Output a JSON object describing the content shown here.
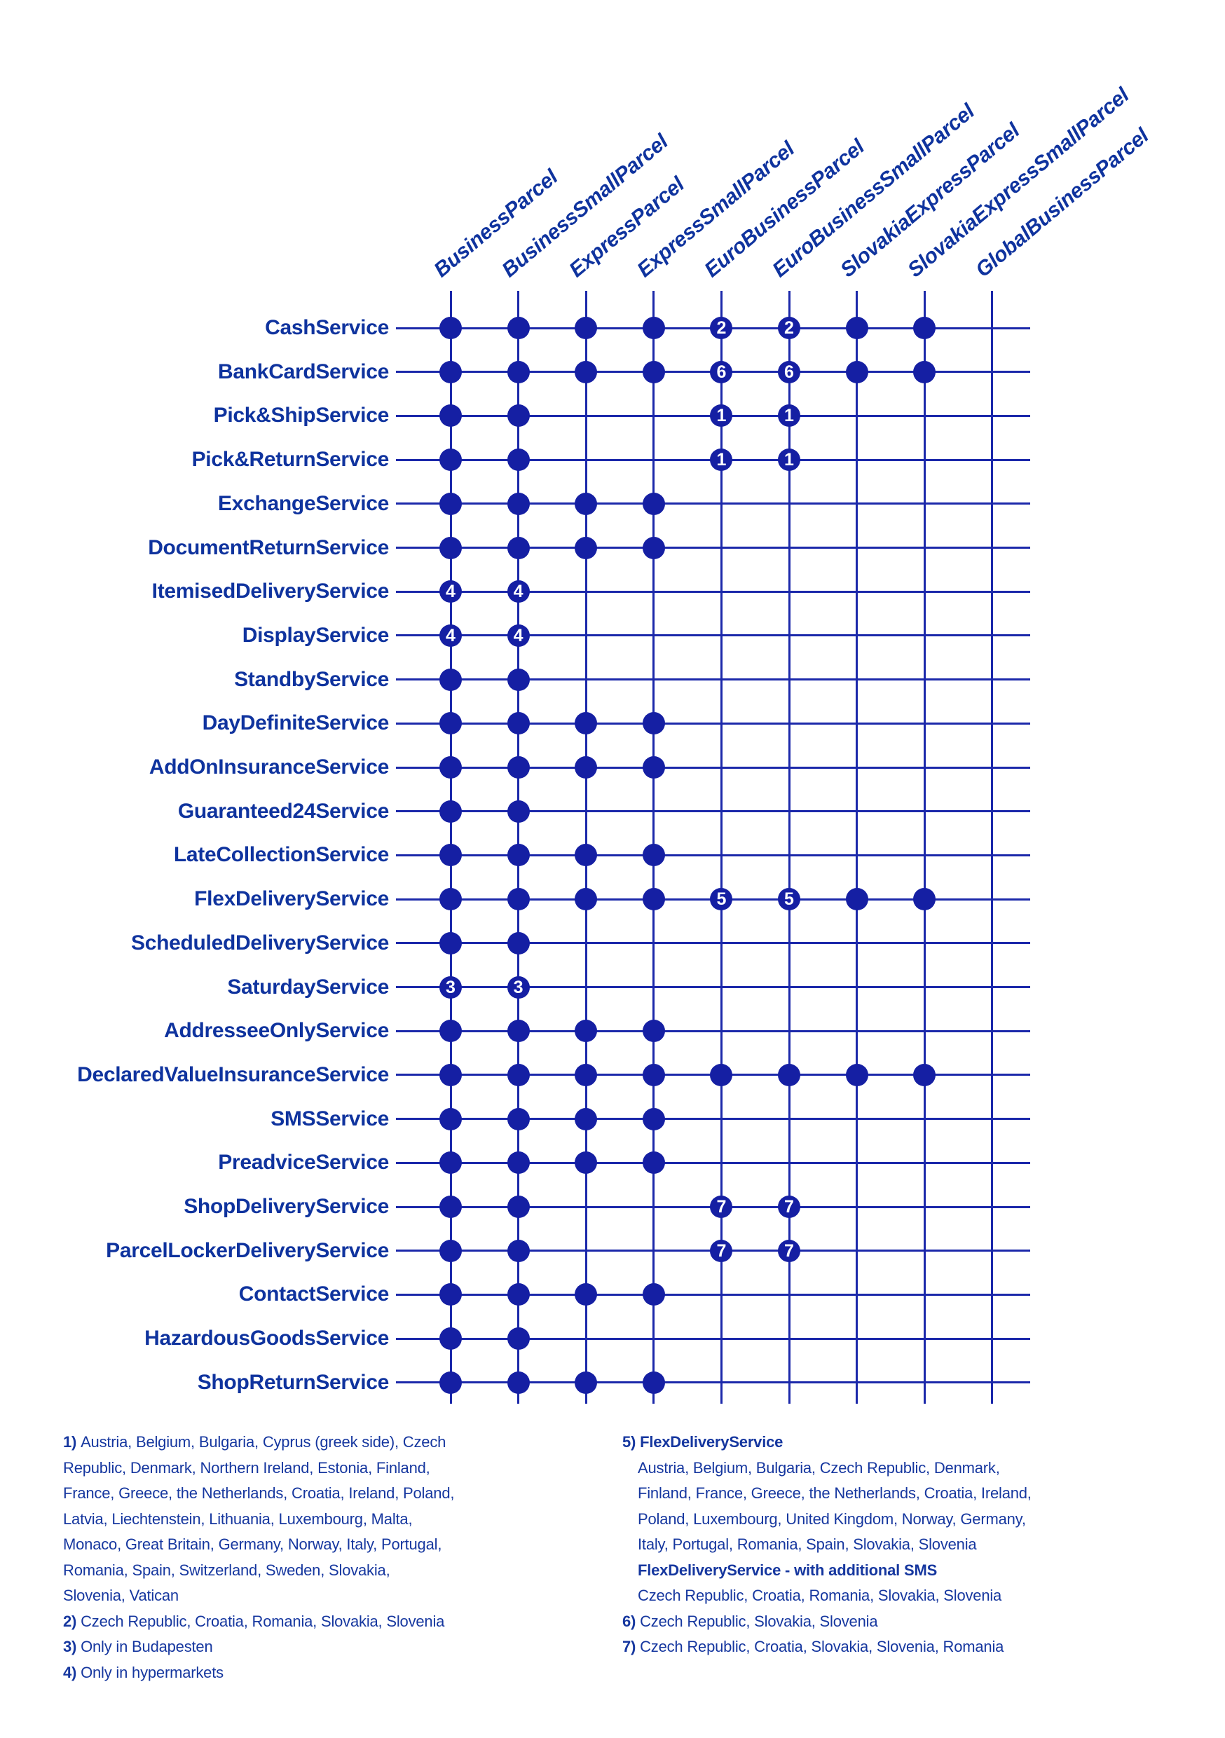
{
  "colors": {
    "text_blue": "#0f339e",
    "line_blue": "#1b28aa",
    "dot_blue": "#151fa3",
    "footnote_blue": "#16379f",
    "background": "#ffffff"
  },
  "matrix": {
    "columns": [
      "BusinessParcel",
      "BusinessSmallParcel",
      "ExpressParcel",
      "ExpressSmallParcel",
      "EuroBusinessParcel",
      "EuroBusinessSmallParcel",
      "SlovakiaExpressParcel",
      "SlovakiaExpressSmallParcel",
      "GlobalBusinessParcel"
    ],
    "rows": [
      {
        "label": "CashService",
        "cells": [
          "dot",
          "dot",
          "dot",
          "dot",
          "2",
          "2",
          "dot",
          "dot",
          ""
        ]
      },
      {
        "label": "BankCardService",
        "cells": [
          "dot",
          "dot",
          "dot",
          "dot",
          "6",
          "6",
          "dot",
          "dot",
          ""
        ]
      },
      {
        "label": "Pick&ShipService",
        "cells": [
          "dot",
          "dot",
          "",
          "",
          "1",
          "1",
          "",
          "",
          ""
        ]
      },
      {
        "label": "Pick&ReturnService",
        "cells": [
          "dot",
          "dot",
          "",
          "",
          "1",
          "1",
          "",
          "",
          ""
        ]
      },
      {
        "label": "ExchangeService",
        "cells": [
          "dot",
          "dot",
          "dot",
          "dot",
          "",
          "",
          "",
          "",
          ""
        ]
      },
      {
        "label": "DocumentReturnService",
        "cells": [
          "dot",
          "dot",
          "dot",
          "dot",
          "",
          "",
          "",
          "",
          ""
        ]
      },
      {
        "label": "ItemisedDeliveryService",
        "cells": [
          "4",
          "4",
          "",
          "",
          "",
          "",
          "",
          "",
          ""
        ]
      },
      {
        "label": "DisplayService",
        "cells": [
          "4",
          "4",
          "",
          "",
          "",
          "",
          "",
          "",
          ""
        ]
      },
      {
        "label": "StandbyService",
        "cells": [
          "dot",
          "dot",
          "",
          "",
          "",
          "",
          "",
          "",
          ""
        ]
      },
      {
        "label": "DayDefiniteService",
        "cells": [
          "dot",
          "dot",
          "dot",
          "dot",
          "",
          "",
          "",
          "",
          ""
        ]
      },
      {
        "label": "AddOnInsuranceService",
        "cells": [
          "dot",
          "dot",
          "dot",
          "dot",
          "",
          "",
          "",
          "",
          ""
        ]
      },
      {
        "label": "Guaranteed24Service",
        "cells": [
          "dot",
          "dot",
          "",
          "",
          "",
          "",
          "",
          "",
          ""
        ]
      },
      {
        "label": "LateCollectionService",
        "cells": [
          "dot",
          "dot",
          "dot",
          "dot",
          "",
          "",
          "",
          "",
          ""
        ]
      },
      {
        "label": "FlexDeliveryService",
        "cells": [
          "dot",
          "dot",
          "dot",
          "dot",
          "5",
          "5",
          "dot",
          "dot",
          ""
        ]
      },
      {
        "label": "ScheduledDeliveryService",
        "cells": [
          "dot",
          "dot",
          "",
          "",
          "",
          "",
          "",
          "",
          ""
        ]
      },
      {
        "label": "SaturdayService",
        "cells": [
          "3",
          "3",
          "",
          "",
          "",
          "",
          "",
          "",
          ""
        ]
      },
      {
        "label": "AddresseeOnlyService",
        "cells": [
          "dot",
          "dot",
          "dot",
          "dot",
          "",
          "",
          "",
          "",
          ""
        ]
      },
      {
        "label": "DeclaredValueInsuranceService",
        "cells": [
          "dot",
          "dot",
          "dot",
          "dot",
          "dot",
          "dot",
          "dot",
          "dot",
          ""
        ]
      },
      {
        "label": "SMSService",
        "cells": [
          "dot",
          "dot",
          "dot",
          "dot",
          "",
          "",
          "",
          "",
          ""
        ]
      },
      {
        "label": "PreadviceService",
        "cells": [
          "dot",
          "dot",
          "dot",
          "dot",
          "",
          "",
          "",
          "",
          ""
        ]
      },
      {
        "label": "ShopDeliveryService",
        "cells": [
          "dot",
          "dot",
          "",
          "",
          "7",
          "7",
          "",
          "",
          ""
        ]
      },
      {
        "label": "ParcelLockerDeliveryService",
        "cells": [
          "dot",
          "dot",
          "",
          "",
          "7",
          "7",
          "",
          "",
          ""
        ]
      },
      {
        "label": "ContactService",
        "cells": [
          "dot",
          "dot",
          "dot",
          "dot",
          "",
          "",
          "",
          "",
          ""
        ]
      },
      {
        "label": "HazardousGoodsService",
        "cells": [
          "dot",
          "dot",
          "",
          "",
          "",
          "",
          "",
          "",
          ""
        ]
      },
      {
        "label": "ShopReturnService",
        "cells": [
          "dot",
          "dot",
          "dot",
          "dot",
          "",
          "",
          "",
          "",
          ""
        ]
      }
    ]
  },
  "footnotes": {
    "left": [
      {
        "prefix": "1)",
        "text": "Austria, Belgium, Bulgaria, Cyprus (greek side), Czech"
      },
      {
        "text": "Republic, Denmark, Northern Ireland, Estonia, Finland,"
      },
      {
        "text": "France, Greece, the Netherlands, Croatia, Ireland, Poland,"
      },
      {
        "text": "Latvia, Liechtenstein, Lithuania, Luxembourg, Malta,"
      },
      {
        "text": "Monaco, Great Britain, Germany, Norway, Italy, Portugal,"
      },
      {
        "text": "Romania, Spain, Switzerland, Sweden, Slovakia,"
      },
      {
        "text": "Slovenia, Vatican"
      },
      {
        "prefix": "2)",
        "text": "Czech Republic, Croatia, Romania, Slovakia, Slovenia"
      },
      {
        "prefix": "3)",
        "text": "Only in Budapesten"
      },
      {
        "prefix": "4)",
        "text": "Only in hypermarkets"
      }
    ],
    "right": [
      {
        "prefix": "5)",
        "text": "FlexDeliveryService",
        "bold": true
      },
      {
        "text": "Austria, Belgium, Bulgaria, Czech Republic, Denmark,",
        "indent": true
      },
      {
        "text": "Finland, France, Greece, the Netherlands, Croatia, Ireland,",
        "indent": true
      },
      {
        "text": "Poland, Luxembourg, United Kingdom, Norway, Germany,",
        "indent": true
      },
      {
        "text": "Italy, Portugal, Romania, Spain, Slovakia, Slovenia",
        "indent": true
      },
      {
        "text": "FlexDeliveryService  - with additional SMS",
        "bold": true,
        "indent": true
      },
      {
        "text": "Czech Republic, Croatia, Romania, Slovakia, Slovenia",
        "indent": true
      },
      {
        "prefix": "6)",
        "text": "Czech Republic, Slovakia, Slovenia"
      },
      {
        "prefix": "7)",
        "text": "Czech Republic, Croatia, Slovakia, Slovenia, Romania"
      }
    ]
  }
}
